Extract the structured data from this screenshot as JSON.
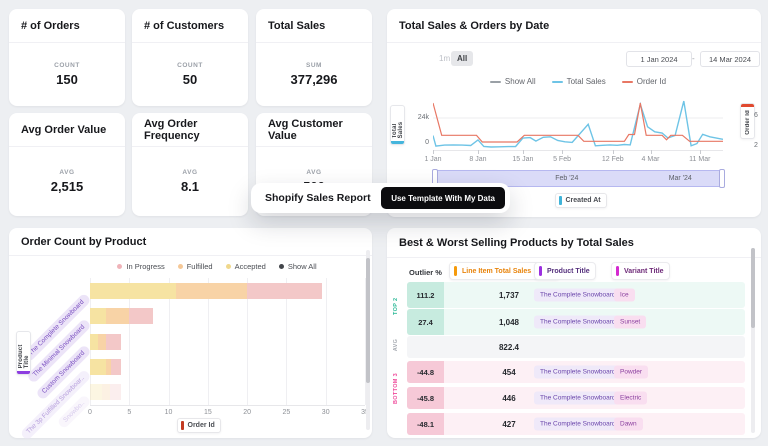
{
  "kpis": [
    {
      "title": "# of Orders",
      "label": "COUNT",
      "value": "150"
    },
    {
      "title": "# of Customers",
      "label": "COUNT",
      "value": "50"
    },
    {
      "title": "Total Sales",
      "label": "SUM",
      "value": "377,296"
    },
    {
      "title": "Avg Order Value",
      "label": "AVG",
      "value": "2,515"
    },
    {
      "title": "Avg Order Frequency",
      "label": "AVG",
      "value": "8.1"
    },
    {
      "title": "Avg Customer Value",
      "label": "AVG",
      "value": "500"
    }
  ],
  "overlay": {
    "title": "Shopify Sales Report",
    "button_label": "Use Template With My Data"
  },
  "sales": {
    "title": "Total Sales & Orders by Date",
    "range_1m": "1m",
    "range_all": "All",
    "active_range": "All",
    "date_from": "1 Jan 2024",
    "date_sep": "-",
    "date_to": "14 Mar 2024",
    "legend": [
      {
        "label": "Show All",
        "color": "#9aa0a6"
      },
      {
        "label": "Total Sales",
        "color": "#6ec4e6"
      },
      {
        "label": "Order Id",
        "color": "#e87764"
      }
    ],
    "y_left_label": "Total Sales",
    "y_left_ticks": [
      "24k",
      "0"
    ],
    "y_right_label": "Order Id",
    "y_right_ticks": [
      "6",
      "2"
    ],
    "x_axis_chip": "Created At",
    "brush_labels": [
      {
        "label": "Feb '24",
        "pos_pct": 42
      },
      {
        "label": "Mar '24",
        "pos_pct": 81
      }
    ]
  },
  "bars": {
    "title": "Order Count by Product",
    "legend": [
      {
        "label": "In Progress",
        "color": "#efb3b9"
      },
      {
        "label": "Fulfilled",
        "color": "#f5c897"
      },
      {
        "label": "Accepted",
        "color": "#f0d88c"
      },
      {
        "label": "Show All",
        "color": "#42454a"
      }
    ],
    "y_axis_label": "Product Title",
    "x_axis_label": "Order Id"
  },
  "table": {
    "title": "Best & Worst Selling Products by Total Sales",
    "headers": {
      "outlier": "Outlier %",
      "total": "Line Item Total Sales",
      "total_badge": "SUM",
      "product": "Product Title",
      "variant": "Variant Title"
    },
    "groups": [
      {
        "label": "TOP 2",
        "tone": "green",
        "rows": [
          {
            "outlier": "111.2",
            "total": "1,737",
            "product": "The Complete Snowboard",
            "variant": "Ice"
          },
          {
            "outlier": "27.4",
            "total": "1,048",
            "product": "The Complete Snowboard",
            "variant": "Sunset"
          }
        ]
      },
      {
        "label": "AVG",
        "tone": "avg",
        "rows": [
          {
            "outlier": "",
            "total": "822.4",
            "product": "",
            "variant": ""
          }
        ]
      },
      {
        "label": "BOTTOM 3",
        "tone": "pink",
        "rows": [
          {
            "outlier": "-44.8",
            "total": "454",
            "product": "The Complete Snowboard",
            "variant": "Powder"
          },
          {
            "outlier": "-45.8",
            "total": "446",
            "product": "The Complete Snowboard",
            "variant": "Electric"
          },
          {
            "outlier": "-48.1",
            "total": "427",
            "product": "The Complete Snowboard",
            "variant": "Dawn"
          }
        ]
      }
    ]
  },
  "chart_data": [
    {
      "id": "total_sales_orders_by_date",
      "type": "line",
      "title": "Total Sales & Orders by Date",
      "x_ticks": [
        "1 Jan",
        "8 Jan",
        "15 Jan",
        "5 Feb",
        "12 Feb",
        "4 Mar",
        "11 Mar"
      ],
      "x_tick_pos_pct": [
        0,
        15.5,
        31,
        44.5,
        62,
        75,
        92
      ],
      "y_left": {
        "label": "Total Sales",
        "unit": "k",
        "ticks": [
          0,
          24
        ]
      },
      "y_right": {
        "label": "Order Id",
        "ticks": [
          2,
          6
        ]
      },
      "series": [
        {
          "name": "Total Sales",
          "axis": "left",
          "color": "#6ec4e6",
          "points": [
            [
              0,
              10
            ],
            [
              1,
              1.5
            ],
            [
              4,
              2.3
            ],
            [
              7,
              2.5
            ],
            [
              10,
              2.3
            ],
            [
              13,
              2
            ],
            [
              15.5,
              6.5
            ],
            [
              17.5,
              1.2
            ],
            [
              20,
              0.8
            ],
            [
              23,
              1
            ],
            [
              26,
              1.1
            ],
            [
              28.5,
              1.2
            ],
            [
              31,
              8
            ],
            [
              33.5,
              8.3
            ],
            [
              35.5,
              5.5
            ],
            [
              38,
              8.6
            ],
            [
              40.5,
              9
            ],
            [
              43,
              6
            ],
            [
              45.5,
              5
            ],
            [
              48,
              4.5
            ],
            [
              53.5,
              19
            ],
            [
              56,
              1.8
            ],
            [
              58.5,
              2.2
            ],
            [
              61,
              2.5
            ],
            [
              63.5,
              2.2
            ],
            [
              66,
              2.8
            ],
            [
              68,
              2.5
            ],
            [
              71.5,
              35
            ],
            [
              74,
              17
            ],
            [
              76.5,
              13
            ],
            [
              79,
              12
            ],
            [
              81,
              8
            ],
            [
              83.5,
              10
            ],
            [
              86.5,
              37.5
            ],
            [
              89,
              1.8
            ],
            [
              91,
              3.5
            ],
            [
              93,
              11
            ],
            [
              95.5,
              9
            ],
            [
              100,
              7
            ]
          ]
        },
        {
          "name": "Order Id",
          "axis": "right",
          "color": "#e87764",
          "points": [
            [
              0,
              8
            ],
            [
              3,
              3.7
            ],
            [
              15,
              3.7
            ],
            [
              17,
              2.8
            ],
            [
              29,
              2.8
            ],
            [
              31.5,
              3.7
            ],
            [
              50,
              3.7
            ],
            [
              52,
              2.9
            ],
            [
              66,
              2.9
            ],
            [
              67.5,
              3.8
            ],
            [
              69.5,
              3.8
            ],
            [
              71.5,
              8
            ],
            [
              73.5,
              3.7
            ],
            [
              79,
              3.7
            ],
            [
              80.5,
              3.1
            ],
            [
              82,
              3.7
            ],
            [
              86,
              3.7
            ],
            [
              88.5,
              2.9
            ],
            [
              100,
              2.9
            ]
          ]
        }
      ]
    },
    {
      "id": "order_count_by_product",
      "type": "stacked_bar_horizontal",
      "title": "Order Count by Product",
      "categories": [
        "The Complete Snowboard",
        "The Minimal Snowboard",
        "Custom Snowboard",
        "The 3p Fulfilled Snowboar..",
        "Snowbo.."
      ],
      "series": [
        {
          "name": "Accepted",
          "color": "#f6e3a2",
          "values": [
            11,
            2,
            1,
            2,
            1.5
          ]
        },
        {
          "name": "Fulfilled",
          "color": "#f8d3a6",
          "values": [
            9,
            3,
            1,
            0.7,
            1
          ]
        },
        {
          "name": "In Progress",
          "color": "#f3c8c8",
          "values": [
            9.5,
            3,
            2,
            1.3,
            1.5
          ]
        }
      ],
      "xlim": [
        0,
        35
      ],
      "x_ticks": [
        0,
        5,
        10,
        15,
        20,
        25,
        30,
        35
      ],
      "row_opacity": [
        1,
        1,
        1,
        1,
        0.3
      ],
      "label_opacity": [
        1,
        1,
        1,
        0.55,
        0.3
      ],
      "xlabel": "Order Id",
      "ylabel": "Product Title"
    },
    {
      "id": "best_worst_selling",
      "type": "table",
      "title": "Best & Worst Selling Products by Total Sales",
      "columns": [
        "Outlier %",
        "Line Item Total Sales (SUM)",
        "Product Title",
        "Variant Title"
      ],
      "rows": [
        [
          "111.2",
          1737,
          "The Complete Snowboard",
          "Ice"
        ],
        [
          "27.4",
          1048,
          "The Complete Snowboard",
          "Sunset"
        ],
        [
          "AVG",
          822.4,
          "",
          ""
        ],
        [
          "-44.8",
          454,
          "The Complete Snowboard",
          "Powder"
        ],
        [
          "-45.8",
          446,
          "The Complete Snowboard",
          "Electric"
        ],
        [
          "-48.1",
          427,
          "The Complete Snowboard",
          "Dawn"
        ]
      ]
    }
  ]
}
